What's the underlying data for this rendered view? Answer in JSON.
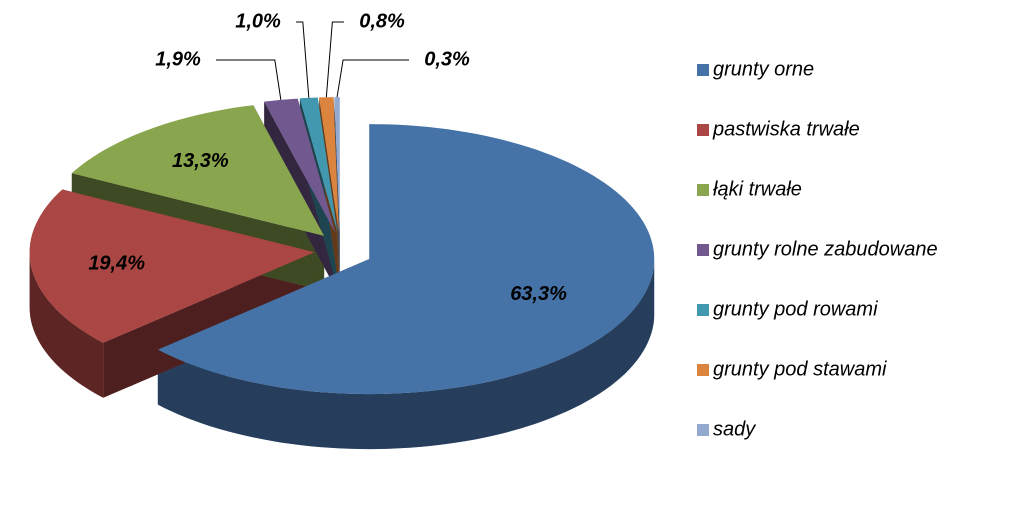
{
  "chart_data": {
    "type": "pie",
    "categories": [
      "grunty orne",
      "pastwiska trwałe",
      "łąki trwałe",
      "grunty rolne zabudowane",
      "grunty pod rowami",
      "grunty pod stawami",
      "sady"
    ],
    "values": [
      63.3,
      19.4,
      13.3,
      1.9,
      1.0,
      0.8,
      0.3
    ],
    "value_labels": [
      "63,3%",
      "19,4%",
      "13,3%",
      "1,9%",
      "1,0%",
      "0,8%",
      "0,3%"
    ],
    "colors": [
      "#4572a7",
      "#aa4643",
      "#89a54e",
      "#71588f",
      "#4198af",
      "#db843d",
      "#93a9cf"
    ],
    "legend": "right"
  }
}
